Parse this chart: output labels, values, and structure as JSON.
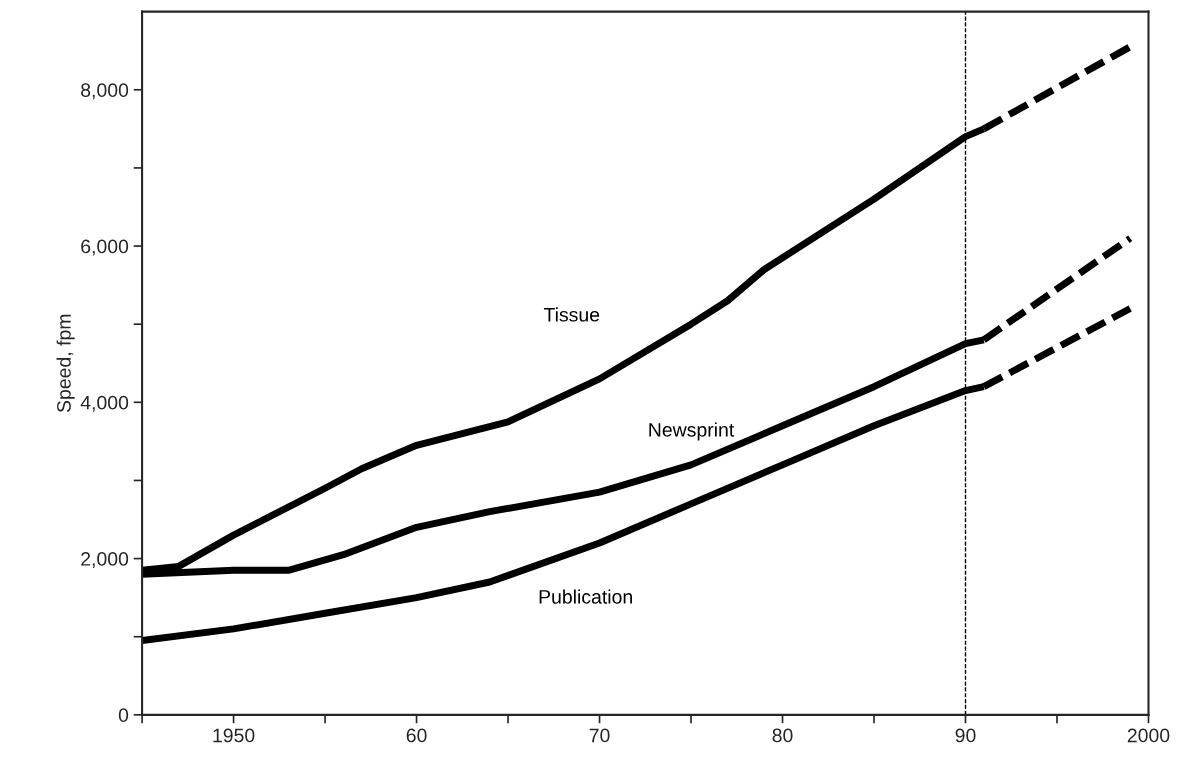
{
  "chart_data": {
    "type": "line",
    "ylabel": "Speed, fpm",
    "xlim": [
      1945,
      2000
    ],
    "ylim": [
      0,
      9000
    ],
    "xticks": [
      {
        "value": 1945,
        "label": null
      },
      1950,
      {
        "value": 1955,
        "label": null
      },
      {
        "value": 1960,
        "label": "60"
      },
      {
        "value": 1965,
        "label": null
      },
      {
        "value": 1970,
        "label": "70"
      },
      {
        "value": 1975,
        "label": null
      },
      {
        "value": 1980,
        "label": "80"
      },
      {
        "value": 1985,
        "label": null
      },
      {
        "value": 1990,
        "label": "90"
      },
      {
        "value": 1995,
        "label": null
      },
      2000
    ],
    "yticks": [
      {
        "value": 0,
        "label": "0"
      },
      {
        "value": 1000,
        "label": null
      },
      {
        "value": 2000,
        "label": "2,000"
      },
      {
        "value": 3000,
        "label": null
      },
      {
        "value": 4000,
        "label": "4,000"
      },
      {
        "value": 5000,
        "label": null
      },
      {
        "value": 6000,
        "label": "6,000"
      },
      {
        "value": 7000,
        "label": null
      },
      {
        "value": 8000,
        "label": "8,000"
      }
    ],
    "grid": false,
    "legend": false,
    "marker": "none",
    "ref_lines": [
      {
        "axis": "x",
        "value": 1990,
        "color": "#000000",
        "line_style": "dashed"
      }
    ],
    "series": [
      {
        "name": "Tissue",
        "color": "#000000",
        "line_style": "solid",
        "x": [
          1945,
          1947,
          1950,
          1955,
          1957,
          1960,
          1965,
          1970,
          1975,
          1977,
          1979,
          1985,
          1990,
          1991
        ],
        "values": [
          1850,
          1900,
          2300,
          2900,
          3150,
          3450,
          3750,
          4300,
          5000,
          5300,
          5700,
          6600,
          7400,
          7500
        ]
      },
      {
        "name": "Newsprint",
        "color": "#000000",
        "line_style": "solid",
        "x": [
          1945,
          1950,
          1953,
          1956,
          1960,
          1964,
          1970,
          1975,
          1980,
          1985,
          1990,
          1991
        ],
        "values": [
          1800,
          1850,
          1850,
          2050,
          2400,
          2600,
          2850,
          3200,
          3700,
          4200,
          4750,
          4800
        ]
      },
      {
        "name": "Publication",
        "color": "#000000",
        "line_style": "solid",
        "x": [
          1945,
          1950,
          1955,
          1960,
          1964,
          1970,
          1975,
          1980,
          1985,
          1990,
          1991
        ],
        "values": [
          950,
          1100,
          1300,
          1500,
          1700,
          2200,
          2700,
          3200,
          3700,
          4150,
          4200
        ]
      },
      {
        "color": "#000000",
        "line_style": "dashed",
        "x": [
          1991,
          1999
        ],
        "values": [
          7500,
          8550
        ]
      },
      {
        "color": "#000000",
        "line_style": "dashed",
        "x": [
          1991,
          1999
        ],
        "values": [
          4800,
          6100
        ]
      },
      {
        "color": "#000000",
        "line_style": "dashed",
        "x": [
          1991,
          1999
        ],
        "values": [
          4200,
          5200
        ]
      }
    ]
  }
}
